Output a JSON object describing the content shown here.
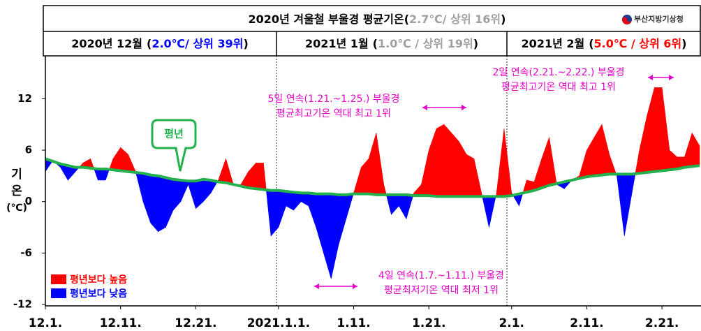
{
  "header": {
    "title": "2020년 겨울철 부울경 평균기온",
    "stat": "2.7℃/ 상위 16위",
    "brackets": [
      "(",
      ")"
    ],
    "logo": "부산지방기상청"
  },
  "months": [
    {
      "label": "2020년 12월",
      "stat": "2.0℃/ 상위 39위",
      "color": "#0000ff"
    },
    {
      "label": "2021년 1월",
      "stat": "1.0℃ / 상위 19위",
      "color": "#a0a0a0"
    },
    {
      "label": "2021년 2월",
      "stat": "5.0℃ / 상위 6위",
      "color": "#ff0000"
    }
  ],
  "chart_data": {
    "type": "area-diff",
    "ylabel": [
      "기",
      "온",
      "(℃)"
    ],
    "categories": [
      "12.1.",
      null,
      null,
      null,
      null,
      null,
      null,
      null,
      null,
      null,
      "12.11.",
      null,
      null,
      null,
      null,
      null,
      null,
      null,
      null,
      null,
      "12.21.",
      null,
      null,
      null,
      null,
      null,
      null,
      null,
      null,
      null,
      null,
      "2021.1.1.",
      null,
      null,
      null,
      null,
      null,
      null,
      null,
      null,
      null,
      "1.11.",
      null,
      null,
      null,
      null,
      null,
      null,
      null,
      null,
      null,
      "1.21.",
      null,
      null,
      null,
      null,
      null,
      null,
      null,
      null,
      null,
      null,
      "2.1.",
      null,
      null,
      null,
      null,
      null,
      null,
      null,
      null,
      null,
      "2.11.",
      null,
      null,
      null,
      null,
      null,
      null,
      null,
      null,
      null,
      "2.21.",
      null,
      null,
      null,
      null,
      null
    ],
    "series": [
      {
        "name": "평년",
        "color": "#22b14c",
        "values": [
          5.0,
          4.7,
          4.4,
          4.2,
          4.0,
          4.0,
          3.9,
          3.8,
          3.8,
          3.7,
          3.6,
          3.5,
          3.4,
          3.3,
          3.1,
          3.0,
          2.8,
          2.6,
          2.5,
          2.4,
          2.4,
          2.6,
          2.5,
          2.3,
          2.2,
          2.0,
          1.8,
          1.6,
          1.5,
          1.4,
          1.3,
          1.3,
          1.2,
          1.1,
          1.0,
          1.0,
          0.9,
          0.9,
          0.9,
          0.8,
          0.8,
          0.9,
          0.9,
          0.9,
          0.8,
          0.8,
          0.8,
          0.8,
          0.8,
          0.7,
          0.7,
          0.7,
          0.6,
          0.6,
          0.6,
          0.6,
          0.6,
          0.6,
          0.6,
          0.6,
          0.6,
          0.6,
          0.7,
          0.9,
          1.1,
          1.3,
          1.6,
          1.9,
          2.1,
          2.3,
          2.5,
          2.7,
          2.9,
          3.0,
          3.1,
          3.2,
          3.2,
          3.2,
          3.2,
          3.3,
          3.4,
          3.5,
          3.6,
          3.7,
          3.8,
          4.0,
          4.1,
          4.2
        ]
      },
      {
        "values": [
          3.5,
          4.8,
          4,
          2.5,
          3.5,
          4.5,
          5,
          2.5,
          2.5,
          5,
          6.3,
          5.5,
          3.5,
          0,
          -2.5,
          -3.5,
          -3,
          -1,
          0,
          2,
          -0.8,
          0,
          1,
          2.5,
          5,
          2,
          2,
          3.5,
          4.5,
          4.5,
          -4,
          -3,
          -0.5,
          -1,
          0,
          -0.5,
          -3,
          -6,
          -9,
          -5,
          -2,
          1,
          4,
          5,
          8,
          2,
          -1.5,
          -0.5,
          -2,
          1,
          2,
          6,
          8.5,
          9,
          8,
          7,
          5.5,
          5,
          1,
          -3,
          1,
          8.5,
          1,
          -0.5,
          2.5,
          2.3,
          5,
          7.5,
          2,
          1.5,
          2.5,
          3,
          6,
          7.5,
          9,
          5.5,
          3,
          -4,
          1,
          6,
          10,
          13.3,
          13.3,
          6,
          5.2,
          5.2,
          8,
          6.5
        ]
      }
    ],
    "above_color": "#ff0000",
    "below_color": "#0000ff",
    "legend": [
      {
        "label": "평년보다 높음",
        "color": "#ff0000"
      },
      {
        "label": "평년보다 낮음",
        "color": "#0000ff"
      }
    ],
    "ylim": [
      -12,
      17
    ],
    "yticks": [
      -12,
      -6,
      0,
      6,
      12
    ],
    "callout": "평년",
    "annotations": [
      {
        "lines": [
          "5일 연속(1.21.~1.25.) 부울경",
          "평균최고기온 역대 최고 1위"
        ]
      },
      {
        "lines": [
          "2일 연속(2.21.~2.22.) 부울경",
          "평균최고기온 역대 최고 1위"
        ]
      },
      {
        "lines": [
          "4일 연속(1.7.~1.11.) 부울경",
          "평균최저기온 역대 최저 1위"
        ]
      }
    ]
  }
}
